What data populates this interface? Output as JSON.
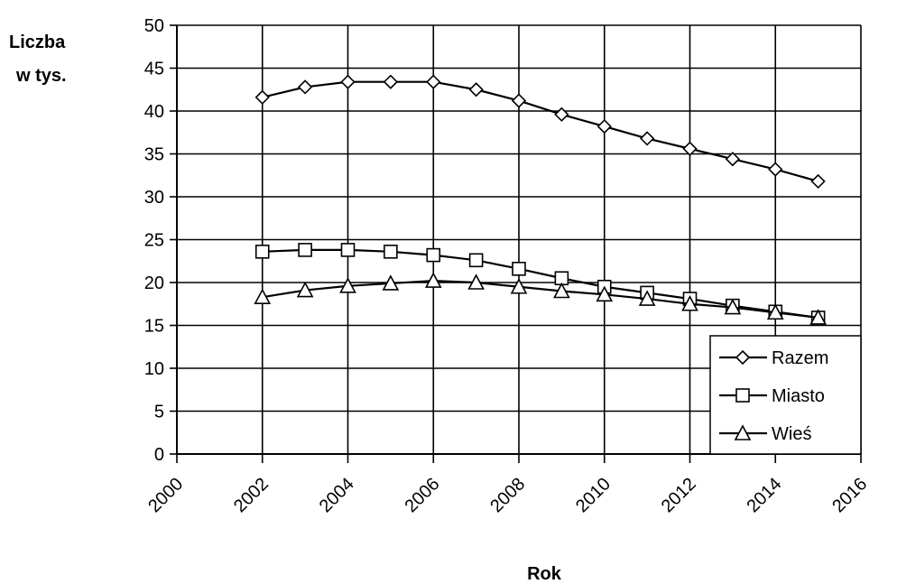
{
  "chart_data": {
    "type": "line",
    "title": "",
    "xlabel": "Rok",
    "ylabel_line1": "Liczba",
    "ylabel_line2": "w tys.",
    "xlim": [
      2000,
      2016
    ],
    "ylim": [
      0,
      50
    ],
    "x_ticks": [
      2000,
      2002,
      2004,
      2006,
      2008,
      2010,
      2012,
      2014,
      2016
    ],
    "y_ticks": [
      0,
      5,
      10,
      15,
      20,
      25,
      30,
      35,
      40,
      45,
      50
    ],
    "grid": true,
    "legend_position": "bottom-right",
    "x": [
      2002,
      2003,
      2004,
      2005,
      2006,
      2007,
      2008,
      2009,
      2010,
      2011,
      2012,
      2013,
      2014,
      2015
    ],
    "series": [
      {
        "name": "Razem",
        "marker": "diamond",
        "values": [
          41.6,
          42.8,
          43.4,
          43.4,
          43.4,
          42.5,
          41.2,
          39.6,
          38.2,
          36.8,
          35.6,
          34.4,
          33.2,
          31.8
        ]
      },
      {
        "name": "Miasto",
        "marker": "square",
        "values": [
          23.6,
          23.8,
          23.8,
          23.6,
          23.2,
          22.6,
          21.6,
          20.5,
          19.5,
          18.8,
          18.1,
          17.3,
          16.6,
          15.9
        ]
      },
      {
        "name": "Wieś",
        "marker": "triangle",
        "values": [
          18.3,
          19.1,
          19.6,
          19.9,
          20.2,
          20.0,
          19.5,
          19.0,
          18.6,
          18.1,
          17.5,
          17.1,
          16.5,
          15.9
        ]
      }
    ]
  }
}
